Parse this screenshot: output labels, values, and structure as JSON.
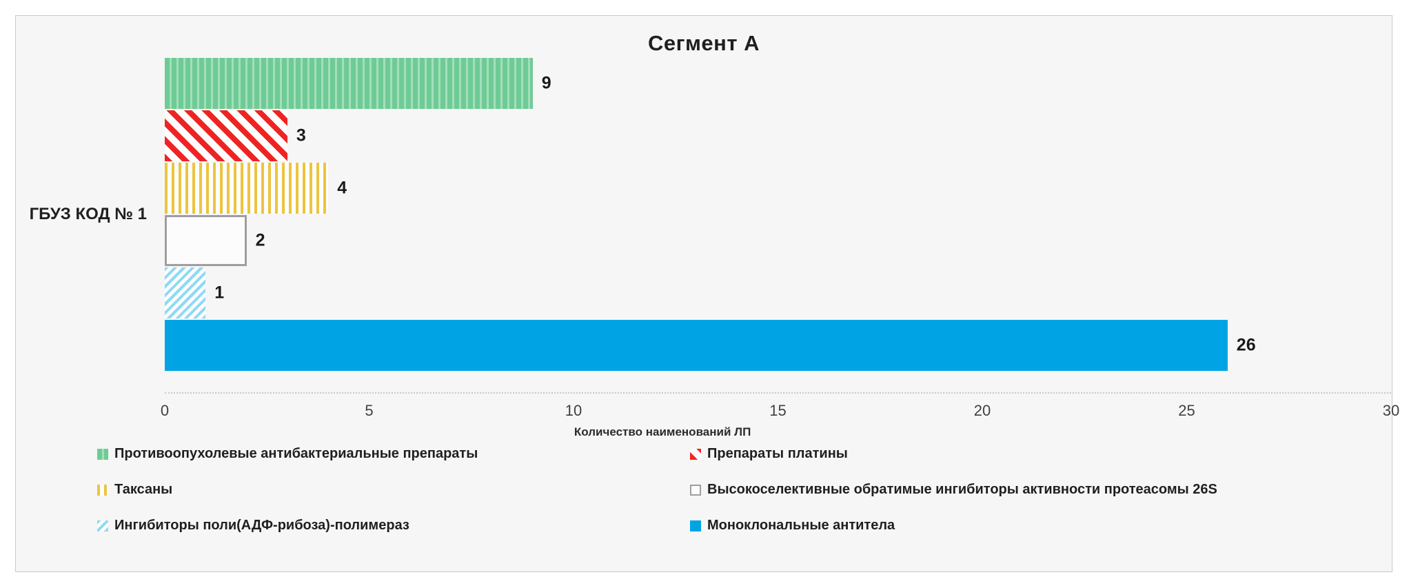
{
  "chart_data": {
    "type": "bar",
    "orientation": "horizontal",
    "title": "Сегмент А",
    "category": "ГБУЗ КОД № 1",
    "xlabel": "Количество наименований ЛП",
    "xlim": [
      0,
      30
    ],
    "xticks": [
      0,
      5,
      10,
      15,
      20,
      25,
      30
    ],
    "grid": "dotted-baseline-only",
    "legend_position": "bottom-two-columns",
    "series": [
      {
        "name": "Противоопухолевые антибактериальные препараты",
        "value": 9,
        "fill": {
          "style": "vertical",
          "fg": "#6fcb95",
          "bg": "#a3dfbb",
          "stripe": [
            7,
            3
          ]
        }
      },
      {
        "name": "Препараты платины",
        "value": 3,
        "fill": {
          "style": "diag-down",
          "fg": "#ee2424",
          "bg": "#fdfdfd",
          "stripe": [
            8,
            10
          ]
        }
      },
      {
        "name": "Таксаны",
        "value": 4,
        "fill": {
          "style": "vertical",
          "fg": "#ecc43f",
          "bg": "#fdfdfd",
          "stripe": [
            4,
            6
          ]
        }
      },
      {
        "name": "Высокоселективные обратимые ингибиторы активности протеасомы 26S",
        "value": 2,
        "fill": {
          "style": "outline",
          "fg": "#fcfcfc",
          "bg": "#fcfcfc",
          "border": "#9e9e9e"
        }
      },
      {
        "name": "Ингибиторы поли(АДФ-рибоза)-полимераз",
        "value": 1,
        "fill": {
          "style": "diag-up",
          "fg": "#8ed9f5",
          "bg": "#fdfdfd",
          "stripe": [
            4,
            5
          ]
        }
      },
      {
        "name": "Моноклональные антитела",
        "value": 26,
        "fill": {
          "style": "solid",
          "fg": "#00a4e4",
          "bg": "#00a4e4"
        }
      }
    ],
    "colors": {
      "panel_background": "#f6f6f6",
      "panel_border": "#c9c9c9",
      "axis_dotted_line": "#c8c8c8",
      "text": "#1f1f1f",
      "tick_text": "#404040"
    }
  }
}
